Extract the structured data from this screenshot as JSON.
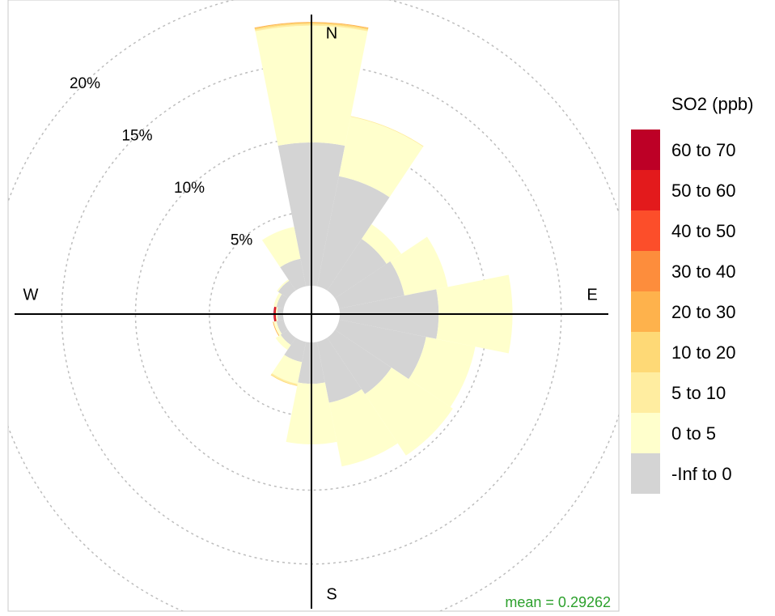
{
  "chart_data": {
    "type": "polar_stacked_bar",
    "legend_title": "SO2 (ppb)",
    "annotation": "mean = 0.29262",
    "directions": [
      "N",
      "E",
      "S",
      "W"
    ],
    "x": [
      0,
      22.5,
      45,
      67.5,
      90,
      112.5,
      135,
      157.5,
      180,
      202.5,
      225,
      247.5,
      270,
      292.5,
      315,
      337.5
    ],
    "series": [
      {
        "name": "-Inf to 0",
        "color": "#d4d4d4",
        "values": [
          9.7,
          7.6,
          4.2,
          4.5,
          6.7,
          6.0,
          4.6,
          4.2,
          2.8,
          1.4,
          0.6,
          0.5,
          0.4,
          0.5,
          0.8,
          1.9
        ]
      },
      {
        "name": "0 to 5",
        "color": "#ffffcc",
        "values": [
          7.9,
          4.1,
          1.2,
          3.0,
          5.0,
          3.4,
          5.0,
          4.4,
          4.1,
          1.5,
          0.4,
          0.2,
          0.1,
          0.2,
          0.1,
          2.2
        ]
      },
      {
        "name": "5 to 10",
        "color": "#ffeda0",
        "values": [
          0.1,
          0.05,
          0,
          0,
          0,
          0,
          0,
          0,
          0,
          0.1,
          0,
          0,
          0,
          0,
          0,
          0
        ]
      },
      {
        "name": "10 to 20",
        "color": "#fed976",
        "values": [
          0.1,
          0,
          0,
          0,
          0,
          0,
          0,
          0,
          0,
          0.05,
          0,
          0,
          0,
          0,
          0,
          0
        ]
      },
      {
        "name": "20 to 30",
        "color": "#feb24c",
        "values": [
          0.05,
          0,
          0,
          0,
          0,
          0,
          0,
          0,
          0,
          0,
          0,
          0.05,
          0,
          0,
          0,
          0
        ]
      },
      {
        "name": "30 to 40",
        "color": "#fd8d3c",
        "values": [
          0,
          0,
          0,
          0,
          0,
          0,
          0,
          0,
          0,
          0,
          0,
          0,
          0,
          0,
          0,
          0
        ]
      },
      {
        "name": "40 to 50",
        "color": "#fc4e2a",
        "values": [
          0,
          0,
          0,
          0,
          0,
          0,
          0,
          0,
          0,
          0,
          0,
          0,
          0,
          0,
          0,
          0
        ]
      },
      {
        "name": "50 to 60",
        "color": "#e31a1c",
        "values": [
          0,
          0,
          0,
          0,
          0,
          0,
          0,
          0,
          0.0,
          0,
          0,
          0,
          0.1,
          0,
          0,
          0
        ]
      },
      {
        "name": "60 to 70",
        "color": "#bd0026",
        "values": [
          0,
          0,
          0,
          0,
          0,
          0,
          0,
          0,
          0,
          0,
          0,
          0,
          0.05,
          0,
          0,
          0
        ]
      }
    ],
    "ylim": [
      0,
      20
    ],
    "yticks": [
      {
        "value": 5,
        "label": "5%"
      },
      {
        "value": 10,
        "label": "10%"
      },
      {
        "value": 15,
        "label": "15%"
      },
      {
        "value": 20,
        "label": "20%"
      }
    ],
    "grid": true
  }
}
